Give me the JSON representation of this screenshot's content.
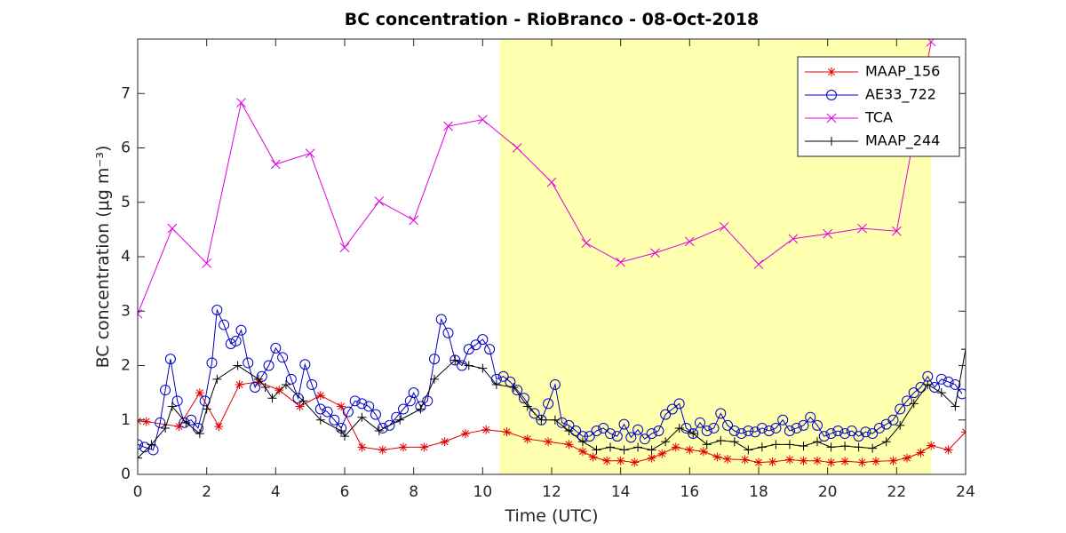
{
  "chart_data": {
    "type": "line",
    "title": "BC concentration  - RioBranco - 08-Oct-2018",
    "xlabel": "Time (UTC)",
    "ylabel": "BC concentration (μg m⁻³)",
    "xlim": [
      0,
      24
    ],
    "ylim": [
      0,
      8
    ],
    "xticks": [
      0,
      2,
      4,
      6,
      8,
      10,
      12,
      14,
      16,
      18,
      20,
      22,
      24
    ],
    "yticks": [
      0,
      1,
      2,
      3,
      4,
      5,
      6,
      7
    ],
    "legend": "top-right",
    "highlight": {
      "x": [
        10.5,
        23
      ],
      "color": "#ffffb0"
    },
    "series": [
      {
        "name": "MAAP_156",
        "color": "#e00000",
        "marker": "*",
        "x": [
          0,
          0.25,
          1.2,
          1.8,
          2.35,
          2.95,
          3.5,
          4.1,
          4.7,
          5.3,
          5.9,
          6.5,
          7.1,
          7.7,
          8.3,
          8.9,
          9.5,
          10.1,
          10.7,
          11.3,
          11.9,
          12.5,
          12.9,
          13.2,
          13.6,
          14,
          14.4,
          14.9,
          15.2,
          15.6,
          16,
          16.4,
          16.8,
          17.1,
          17.6,
          18,
          18.4,
          18.9,
          19.3,
          19.7,
          20.1,
          20.5,
          21,
          21.4,
          21.9,
          22.3,
          22.7,
          23,
          23.5,
          24
        ],
        "values": [
          0.98,
          0.97,
          0.88,
          1.5,
          0.88,
          1.65,
          1.7,
          1.55,
          1.25,
          1.45,
          1.25,
          0.5,
          0.45,
          0.5,
          0.5,
          0.6,
          0.75,
          0.82,
          0.78,
          0.65,
          0.6,
          0.55,
          0.42,
          0.32,
          0.25,
          0.25,
          0.22,
          0.3,
          0.38,
          0.5,
          0.45,
          0.42,
          0.32,
          0.28,
          0.27,
          0.22,
          0.23,
          0.27,
          0.25,
          0.25,
          0.22,
          0.24,
          0.22,
          0.24,
          0.25,
          0.3,
          0.4,
          0.53,
          0.45,
          0.78
        ]
      },
      {
        "name": "AE33_722",
        "color": "#0000c0",
        "marker": "o",
        "x": [
          0,
          0.2,
          0.45,
          0.65,
          0.8,
          0.95,
          1.15,
          1.35,
          1.55,
          1.75,
          1.95,
          2.15,
          2.3,
          2.5,
          2.7,
          2.85,
          3,
          3.2,
          3.4,
          3.6,
          3.8,
          4,
          4.2,
          4.45,
          4.65,
          4.85,
          5.05,
          5.3,
          5.5,
          5.7,
          5.9,
          6.1,
          6.3,
          6.5,
          6.7,
          6.9,
          7.1,
          7.3,
          7.5,
          7.7,
          7.9,
          8,
          8.2,
          8.4,
          8.6,
          8.8,
          9,
          9.2,
          9.4,
          9.6,
          9.8,
          10,
          10.2,
          10.4,
          10.6,
          10.8,
          11,
          11.2,
          11.5,
          11.7,
          11.9,
          12.1,
          12.3,
          12.5,
          12.7,
          12.9,
          13.1,
          13.3,
          13.5,
          13.7,
          13.9,
          14.1,
          14.3,
          14.5,
          14.7,
          14.9,
          15.1,
          15.3,
          15.5,
          15.7,
          15.9,
          16.1,
          16.3,
          16.5,
          16.7,
          16.9,
          17.1,
          17.3,
          17.5,
          17.7,
          17.9,
          18.1,
          18.3,
          18.5,
          18.7,
          18.9,
          19.1,
          19.3,
          19.5,
          19.7,
          19.9,
          20.1,
          20.3,
          20.5,
          20.7,
          20.9,
          21.1,
          21.3,
          21.5,
          21.7,
          21.9,
          22.1,
          22.3,
          22.5,
          22.7,
          22.9,
          23.1,
          23.3,
          23.5,
          23.7,
          23.9
        ],
        "values": [
          0.55,
          0.5,
          0.45,
          0.95,
          1.55,
          2.12,
          1.35,
          0.95,
          1.0,
          0.85,
          1.35,
          2.05,
          3.02,
          2.75,
          2.4,
          2.45,
          2.65,
          2.05,
          1.6,
          1.8,
          2.0,
          2.32,
          2.15,
          1.75,
          1.4,
          2.02,
          1.65,
          1.2,
          1.15,
          1.0,
          0.85,
          1.15,
          1.35,
          1.3,
          1.25,
          1.1,
          0.85,
          0.9,
          1.05,
          1.2,
          1.35,
          1.5,
          1.25,
          1.35,
          2.12,
          2.85,
          2.6,
          2.1,
          2.0,
          2.3,
          2.38,
          2.48,
          2.3,
          1.75,
          1.8,
          1.7,
          1.55,
          1.4,
          1.12,
          1.0,
          1.3,
          1.65,
          0.95,
          0.9,
          0.8,
          0.7,
          0.7,
          0.8,
          0.85,
          0.75,
          0.7,
          0.92,
          0.68,
          0.82,
          0.65,
          0.75,
          0.8,
          1.1,
          1.2,
          1.3,
          0.85,
          0.75,
          0.95,
          0.8,
          0.85,
          1.12,
          0.9,
          0.8,
          0.75,
          0.8,
          0.78,
          0.85,
          0.8,
          0.85,
          1.0,
          0.8,
          0.85,
          0.9,
          1.05,
          0.9,
          0.7,
          0.75,
          0.8,
          0.75,
          0.8,
          0.7,
          0.78,
          0.75,
          0.85,
          0.92,
          1.0,
          1.2,
          1.35,
          1.5,
          1.6,
          1.8,
          1.6,
          1.75,
          1.7,
          1.65,
          1.48
        ]
      },
      {
        "name": "TCA",
        "color": "#e000e0",
        "marker": "x",
        "x": [
          0,
          1,
          2,
          3,
          4,
          5,
          6,
          7,
          8,
          9,
          10,
          11,
          12,
          13,
          14,
          15,
          16,
          17,
          18,
          19,
          20,
          21,
          22,
          23
        ],
        "values": [
          2.95,
          4.52,
          3.88,
          6.83,
          5.7,
          5.9,
          4.17,
          5.02,
          4.67,
          6.4,
          6.52,
          6.0,
          5.37,
          4.25,
          3.9,
          4.07,
          4.28,
          4.55,
          3.86,
          4.33,
          4.42,
          4.52,
          4.47,
          7.95
        ]
      },
      {
        "name": "MAAP_244",
        "color": "#000000",
        "marker": "+",
        "x": [
          0,
          0.4,
          0.8,
          1,
          1.4,
          1.8,
          2,
          2.3,
          2.9,
          3.5,
          3.7,
          3.9,
          4.3,
          4.8,
          5.3,
          5.9,
          6,
          6.5,
          7,
          7.6,
          8.2,
          8.6,
          9.2,
          9.6,
          10,
          10.4,
          10.9,
          11.3,
          11.7,
          12.1,
          12.5,
          12.9,
          13.3,
          13.7,
          14.1,
          14.5,
          14.9,
          15.3,
          15.7,
          16.1,
          16.5,
          16.9,
          17.3,
          17.7,
          18.1,
          18.5,
          18.9,
          19.3,
          19.7,
          20.1,
          20.5,
          20.9,
          21.3,
          21.7,
          22.1,
          22.5,
          22.9,
          23.3,
          23.7,
          24
        ],
        "values": [
          0.3,
          0.55,
          0.85,
          1.25,
          0.95,
          0.75,
          1.2,
          1.75,
          2.0,
          1.75,
          1.6,
          1.4,
          1.65,
          1.35,
          1.0,
          0.8,
          0.7,
          1.05,
          0.8,
          1.0,
          1.2,
          1.75,
          2.1,
          2.0,
          1.95,
          1.65,
          1.6,
          1.25,
          1.0,
          1.0,
          0.8,
          0.6,
          0.45,
          0.5,
          0.45,
          0.5,
          0.45,
          0.6,
          0.85,
          0.75,
          0.55,
          0.62,
          0.6,
          0.45,
          0.5,
          0.55,
          0.55,
          0.52,
          0.6,
          0.5,
          0.52,
          0.5,
          0.48,
          0.6,
          0.9,
          1.3,
          1.65,
          1.5,
          1.25,
          2.3
        ]
      }
    ]
  }
}
